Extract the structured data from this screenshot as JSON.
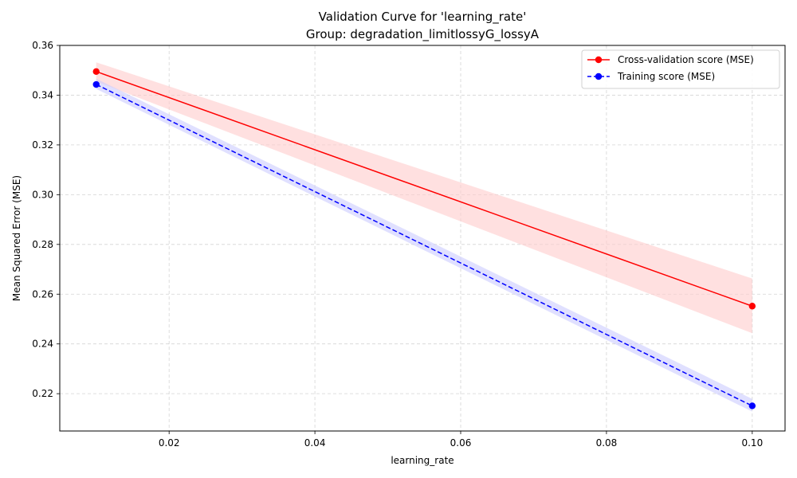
{
  "chart_data": {
    "type": "line",
    "title": "Validation Curve for 'learning_rate'",
    "subtitle": "Group: degradation_limitlossyG_lossyA",
    "xlabel": "learning_rate",
    "ylabel": "Mean Squared Error (MSE)",
    "xlim": [
      0.005,
      0.1045
    ],
    "ylim": [
      0.205,
      0.36
    ],
    "xticks": [
      0.02,
      0.04,
      0.06,
      0.08,
      0.1
    ],
    "xtick_labels": [
      "0.02",
      "0.04",
      "0.06",
      "0.08",
      "0.10"
    ],
    "yticks": [
      0.22,
      0.24,
      0.26,
      0.28,
      0.3,
      0.32,
      0.34,
      0.36
    ],
    "ytick_labels": [
      "0.22",
      "0.24",
      "0.26",
      "0.28",
      "0.30",
      "0.32",
      "0.34",
      "0.36"
    ],
    "grid": true,
    "legend_position": "top-right",
    "series": [
      {
        "name": "Cross-validation score (MSE)",
        "color": "#ff0000",
        "linestyle": "solid",
        "band_color": "#ffcccc",
        "x": [
          0.01,
          0.1
        ],
        "y": [
          0.3495,
          0.2552
        ],
        "lower": [
          0.3455,
          0.2443
        ],
        "upper": [
          0.3532,
          0.2663
        ]
      },
      {
        "name": "Training score (MSE)",
        "color": "#0000ff",
        "linestyle": "dashed",
        "band_color": "#ccccff",
        "x": [
          0.01,
          0.1
        ],
        "y": [
          0.3443,
          0.2151
        ],
        "lower": [
          0.3425,
          0.2128
        ],
        "upper": [
          0.3466,
          0.2179
        ]
      }
    ]
  }
}
